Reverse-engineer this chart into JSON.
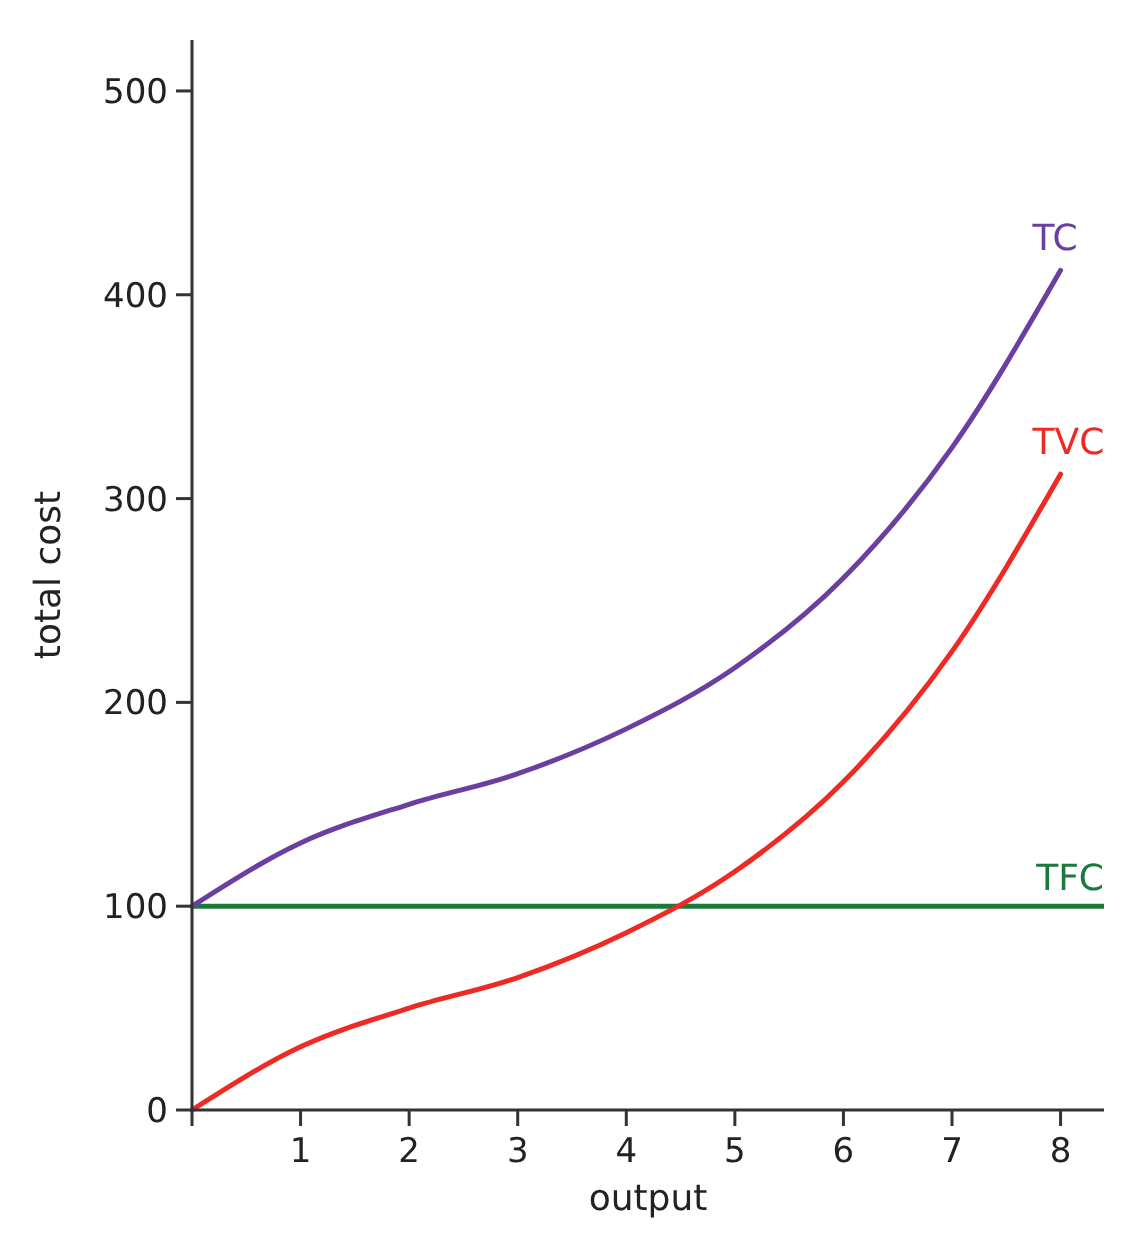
{
  "chart_data": {
    "type": "line",
    "xlabel": "output",
    "ylabel": "total cost",
    "x": [
      0,
      1,
      2,
      3,
      4,
      5,
      6,
      7,
      8
    ],
    "series": [
      {
        "name": "TC",
        "color": "#6b3fa0",
        "values": [
          100,
          131,
          150,
          165,
          187,
          217,
          261,
          325,
          412
        ]
      },
      {
        "name": "TVC",
        "color": "#ee2a24",
        "values": [
          0,
          31,
          50,
          65,
          87,
          117,
          161,
          225,
          312
        ]
      }
    ],
    "ref_lines": [
      {
        "axis": "y",
        "value": 100,
        "label": "TFC",
        "color": "#1a7a3c"
      }
    ],
    "xlim": [
      0,
      8.4
    ],
    "ylim": [
      0,
      525
    ],
    "xticks": [
      {
        "value": 0,
        "label": null
      },
      1,
      2,
      3,
      4,
      5,
      6,
      7,
      8
    ],
    "yticks": [
      0,
      100,
      200,
      300,
      400,
      500
    ],
    "grid": false,
    "marker": "none",
    "line_style": "solid"
  }
}
